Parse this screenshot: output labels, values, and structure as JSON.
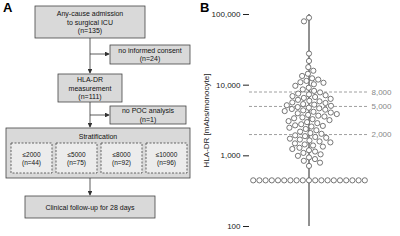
{
  "diagram": {
    "panel": "A",
    "admission": {
      "lines": [
        "Any-cause admission",
        "to surgical ICU",
        "(n=135)"
      ]
    },
    "exclusion_1": {
      "lines": [
        "no informed consent",
        "(n=24)"
      ]
    },
    "measurement": {
      "lines": [
        "HLA-DR",
        "measurement",
        "(n=111)"
      ]
    },
    "exclusion_2": {
      "lines": [
        "no POC analysis",
        "(n=1)"
      ]
    },
    "stratification": {
      "title": "Stratification",
      "strata": [
        {
          "label": "≤2000",
          "n": "(n=44)"
        },
        {
          "label": "≤5000",
          "n": "(n=75)"
        },
        {
          "label": "≤8000",
          "n": "(n=92)"
        },
        {
          "label": "≤10000",
          "n": "(n=96)"
        }
      ]
    },
    "followup": {
      "lines": [
        "Clinical follow-up for 28 days"
      ]
    }
  },
  "chart_data": {
    "type": "scatter",
    "panel": "B",
    "ylabel": "HLA-DR [mAbs/monocyte]",
    "log": "y",
    "marker": "circle",
    "color": "#555555",
    "tick_labels": "y",
    "ylim": [
      100,
      100000
    ],
    "yticks": [
      100,
      {
        "value": 1000,
        "label": "1,000"
      },
      {
        "value": 10000,
        "label": "10,000"
      },
      {
        "value": 100000,
        "label": "100,000"
      }
    ],
    "reference_lines": [
      {
        "value": 2000,
        "label": "2,000"
      },
      {
        "value": 5000,
        "label": "5,000"
      },
      {
        "value": 8000,
        "label": "8,000"
      }
    ],
    "values": [
      90000,
      80000,
      28000,
      22000,
      18000,
      16000,
      14500,
      13500,
      12500,
      12000,
      11500,
      11000,
      10800,
      10300,
      9800,
      9200,
      8700,
      8300,
      7900,
      7600,
      7400,
      7200,
      7000,
      6800,
      6600,
      6400,
      6200,
      6000,
      5900,
      5700,
      5600,
      5400,
      5300,
      5200,
      5100,
      4900,
      4800,
      4700,
      4600,
      4500,
      4400,
      4300,
      4200,
      4100,
      4000,
      3900,
      3800,
      3700,
      3600,
      3500,
      3400,
      3300,
      3200,
      3100,
      3000,
      2900,
      2800,
      2700,
      2650,
      2600,
      2500,
      2400,
      2300,
      2200,
      2100,
      2050,
      1950,
      1900,
      1850,
      1800,
      1750,
      1700,
      1650,
      1600,
      1550,
      1500,
      1450,
      1400,
      1350,
      1300,
      1250,
      1200,
      1150,
      1100,
      1050,
      1000,
      950,
      900,
      850,
      800,
      720,
      450,
      450,
      450,
      450,
      450,
      450,
      450,
      450,
      450,
      450,
      450,
      450,
      450,
      450,
      450,
      450,
      450,
      450,
      450
    ]
  }
}
